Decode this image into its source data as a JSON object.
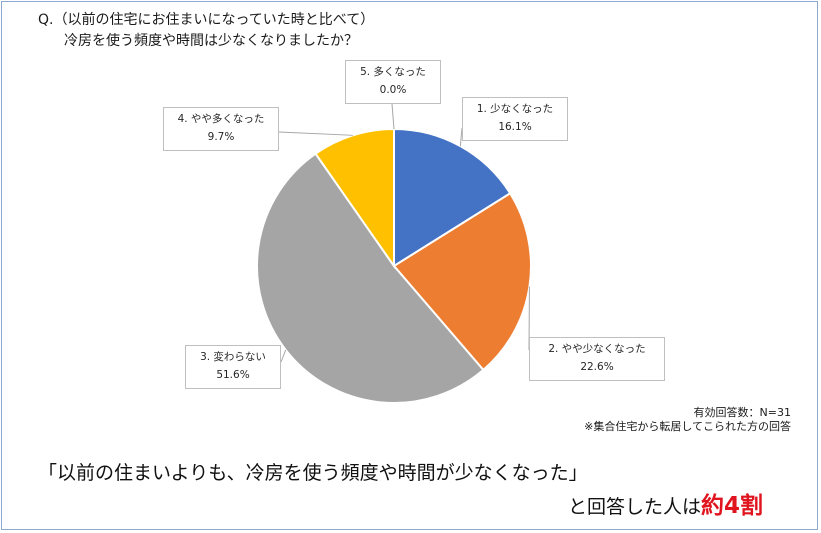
{
  "question": {
    "line1": "Q.（以前の住宅にお住まいになっていた時と比べて）",
    "line2": "冷房を使う頻度や時間は少なくなりましたか？"
  },
  "chart_data": {
    "type": "pie",
    "title": "",
    "slices": [
      {
        "label": "1. 少なくなった",
        "value": 16.1,
        "display": "16.1%",
        "color": "#4472c4"
      },
      {
        "label": "2. やや少なくなった",
        "value": 22.6,
        "display": "22.6%",
        "color": "#ed7d31"
      },
      {
        "label": "3. 変わらない",
        "value": 51.6,
        "display": "51.6%",
        "color": "#a5a5a5"
      },
      {
        "label": "4. やや多くなった",
        "value": 9.7,
        "display": "9.7%",
        "color": "#ffc000"
      },
      {
        "label": "5. 多くなった",
        "value": 0.0,
        "display": "0.0%",
        "color": "#5b9bd5"
      }
    ],
    "start_angle_deg": 0,
    "direction": "clockwise",
    "legend": "none"
  },
  "notes": {
    "sample": "有効回答数：N=31",
    "scope": "※集合住宅から転居してこられた方の回答"
  },
  "conclusion": {
    "line1": "「以前の住まいよりも、冷房を使う頻度や時間が少なくなった」",
    "line2_prefix": "と回答した人は",
    "highlight": "約4割",
    "highlight_color": "#e0141e"
  }
}
